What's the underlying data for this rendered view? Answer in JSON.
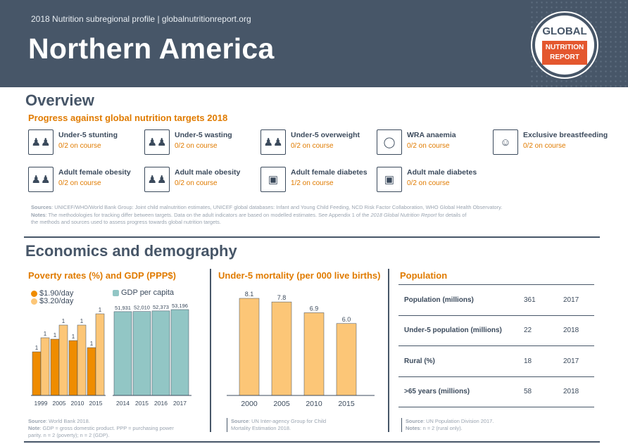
{
  "header": {
    "subtitle": "2018 Nutrition subregional profile | globalnutritionreport.org",
    "title": "Northern America",
    "logo_top": "GLOBAL",
    "logo_line1": "NUTRITION",
    "logo_line2": "REPORT"
  },
  "overview": {
    "heading": "Overview",
    "targets_heading": "Progress against global nutrition targets 2018",
    "targets": [
      {
        "name": "Under-5 stunting",
        "status": "0/2 on course",
        "icon": "children-icon"
      },
      {
        "name": "Under-5 wasting",
        "status": "0/2 on course",
        "icon": "children-icon"
      },
      {
        "name": "Under-5 overweight",
        "status": "0/2 on course",
        "icon": "children-icon"
      },
      {
        "name": "WRA anaemia",
        "status": "0/2 on course",
        "icon": "drop-icon"
      },
      {
        "name": "Exclusive breastfeeding",
        "status": "0/2 on course",
        "icon": "mother-baby-icon"
      },
      {
        "name": "Adult female obesity",
        "status": "0/2 on course",
        "icon": "adults-icon"
      },
      {
        "name": "Adult male obesity",
        "status": "0/2 on course",
        "icon": "adults-icon"
      },
      {
        "name": "Adult female diabetes",
        "status": "1/2 on course",
        "icon": "glucose-meter-icon"
      },
      {
        "name": "Adult male diabetes",
        "status": "0/2 on course",
        "icon": "glucose-meter-icon"
      }
    ],
    "sources_label": "Sources",
    "sources_text": ": UNICEF/WHO/World Bank Group: Joint child malnutrition estimates, UNICEF global databases: Infant and Young Child Feeding, NCD Risk Factor Collaboration, WHO Global Health Observatory.",
    "notes_label": "Notes",
    "notes_text": ": The methodologies for tracking differ between targets. Data on the adult indicators are based on modelled estimates. See Appendix 1 of the ",
    "notes_italic": "2018 Global Nutrition Report",
    "notes_text2": " for details of",
    "notes_line3": "the methods and sources used to assess progress towards global nutrition targets."
  },
  "economics": {
    "heading": "Economics and demography",
    "poverty": {
      "heading": "Poverty rates (%) and GDP (PPP$)",
      "legend_a": "$1.90/day",
      "legend_b": "$3.20/day",
      "legend_c": "GDP per capita",
      "source_label": "Source",
      "source_text": ": World Bank 2018.",
      "note_label": "Note",
      "note_text": ": GDP = gross domestic product. PPP = purchasing power",
      "note_line2": "parity. n = 2 (poverty); n = 2 (GDP)."
    },
    "mortality": {
      "heading": "Under-5 mortality (per 000 live births)",
      "source_label": "Source",
      "source_text": ": UN Inter-agency Group for Child",
      "source_line2": "Mortality Estimation 2018."
    },
    "population": {
      "heading": "Population",
      "rows": [
        {
          "label": "Population (millions)",
          "value": "361",
          "year": "2017"
        },
        {
          "label": "Under-5 population (millions)",
          "value": "22",
          "year": "2018"
        },
        {
          "label": "Rural (%)",
          "value": "18",
          "year": "2017"
        },
        {
          "label": ">65 years (millions)",
          "value": "58",
          "year": "2018"
        }
      ],
      "source_label": "Source",
      "source_text": ": UN Population Division 2017.",
      "note_label": "Notes",
      "note_text": ": n = 2 (rural only)."
    }
  },
  "colors": {
    "header": "#475668",
    "orange": "#e07b00",
    "dark_orange_bar": "#ef8c00",
    "light_orange_bar": "#fcc677",
    "teal_bar": "#92c6c5"
  },
  "chart_data": [
    {
      "type": "bar",
      "categories": [
        "1999",
        "2005",
        "2010",
        "2015"
      ],
      "series": [
        {
          "name": "$1.90/day",
          "values": [
            1,
            1,
            1,
            1
          ]
        },
        {
          "name": "$3.20/day",
          "values": [
            1,
            1,
            1,
            1
          ]
        }
      ],
      "data_labels": [
        [
          "1",
          "1",
          "1",
          "1"
        ],
        [
          "1",
          "1",
          "1",
          "1"
        ]
      ]
    },
    {
      "type": "bar",
      "categories": [
        "2014",
        "2015",
        "2016",
        "2017"
      ],
      "series": [
        {
          "name": "GDP per capita",
          "values": [
            51931,
            52010,
            52373,
            53196
          ]
        }
      ],
      "data_labels": [
        "51,931",
        "52,010",
        "52,373",
        "53,196"
      ]
    },
    {
      "type": "bar",
      "categories": [
        "2000",
        "2005",
        "2010",
        "2015"
      ],
      "values": [
        8.1,
        7.8,
        6.9,
        6.0
      ],
      "data_labels": [
        "8.1",
        "7.8",
        "6.9",
        "6.0"
      ]
    }
  ]
}
